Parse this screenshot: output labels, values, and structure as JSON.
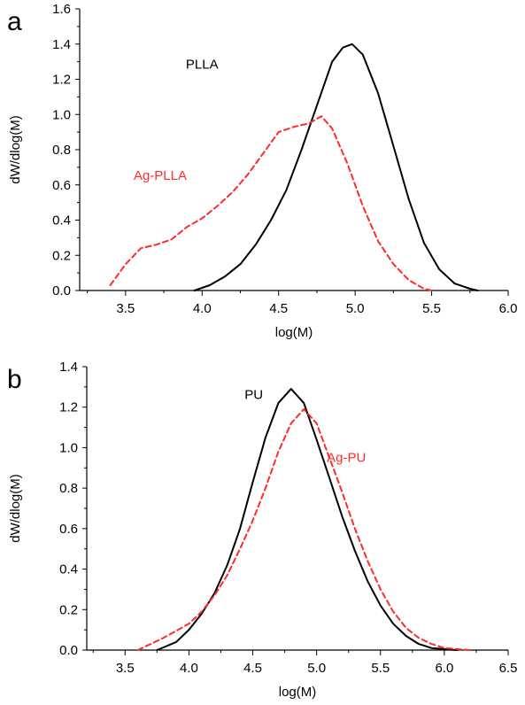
{
  "chart_data": [
    {
      "panel": "a",
      "type": "line",
      "xlabel": "log(M)",
      "ylabel": "dW/dlog(M)",
      "xlim": [
        3.2,
        6.0
      ],
      "ylim": [
        0.0,
        1.6
      ],
      "xticks": [
        "3.5",
        "4.0",
        "4.5",
        "5.0",
        "5.5",
        "6.0"
      ],
      "yticks": [
        "0.0",
        "0.2",
        "0.4",
        "0.6",
        "0.8",
        "1.0",
        "1.2",
        "1.4",
        "1.6"
      ],
      "series": [
        {
          "name": "PLLA",
          "color": "#000000",
          "dash": "solid",
          "x": [
            3.95,
            4.05,
            4.15,
            4.25,
            4.35,
            4.45,
            4.55,
            4.65,
            4.75,
            4.85,
            4.92,
            4.98,
            5.05,
            5.15,
            5.25,
            5.35,
            5.45,
            5.55,
            5.65,
            5.75,
            5.8
          ],
          "y": [
            0.0,
            0.03,
            0.08,
            0.15,
            0.26,
            0.4,
            0.57,
            0.8,
            1.05,
            1.3,
            1.38,
            1.4,
            1.34,
            1.12,
            0.82,
            0.52,
            0.27,
            0.12,
            0.04,
            0.01,
            0.0
          ]
        },
        {
          "name": "Ag-PLLA",
          "color": "#ff2a2a",
          "dash": "dashed",
          "x": [
            3.4,
            3.5,
            3.6,
            3.7,
            3.8,
            3.9,
            4.0,
            4.1,
            4.2,
            4.3,
            4.4,
            4.5,
            4.6,
            4.7,
            4.78,
            4.85,
            4.95,
            5.05,
            5.15,
            5.25,
            5.35,
            5.45,
            5.5
          ],
          "y": [
            0.03,
            0.15,
            0.24,
            0.26,
            0.29,
            0.36,
            0.41,
            0.48,
            0.56,
            0.66,
            0.78,
            0.9,
            0.93,
            0.95,
            0.99,
            0.92,
            0.72,
            0.48,
            0.28,
            0.15,
            0.06,
            0.01,
            0.0
          ]
        }
      ]
    },
    {
      "panel": "b",
      "type": "line",
      "xlabel": "log(M)",
      "ylabel": "dW/dlog(M)",
      "xlim": [
        3.2,
        6.5
      ],
      "ylim": [
        0.0,
        1.4
      ],
      "xticks": [
        "3.5",
        "4.0",
        "4.5",
        "5.0",
        "5.5",
        "6.0",
        "6.5"
      ],
      "yticks": [
        "0.0",
        "0.2",
        "0.4",
        "0.6",
        "0.8",
        "1.0",
        "1.2",
        "1.4"
      ],
      "series": [
        {
          "name": "PU",
          "color": "#000000",
          "dash": "solid",
          "x": [
            3.75,
            3.9,
            4.0,
            4.1,
            4.2,
            4.3,
            4.4,
            4.5,
            4.6,
            4.7,
            4.8,
            4.9,
            5.0,
            5.1,
            5.2,
            5.3,
            5.4,
            5.5,
            5.6,
            5.7,
            5.8,
            5.9,
            6.0,
            6.1
          ],
          "y": [
            0.0,
            0.04,
            0.1,
            0.18,
            0.28,
            0.42,
            0.6,
            0.83,
            1.05,
            1.22,
            1.29,
            1.22,
            1.04,
            0.85,
            0.66,
            0.49,
            0.34,
            0.22,
            0.13,
            0.07,
            0.03,
            0.01,
            0.005,
            0.0
          ]
        },
        {
          "name": "Ag-PU",
          "color": "#ff2a2a",
          "dash": "dashed",
          "x": [
            3.6,
            3.8,
            4.0,
            4.1,
            4.2,
            4.3,
            4.4,
            4.5,
            4.6,
            4.7,
            4.8,
            4.9,
            5.0,
            5.1,
            5.2,
            5.3,
            5.4,
            5.5,
            5.6,
            5.7,
            5.8,
            5.9,
            6.0,
            6.2
          ],
          "y": [
            0.0,
            0.06,
            0.13,
            0.19,
            0.27,
            0.37,
            0.5,
            0.64,
            0.8,
            0.98,
            1.12,
            1.19,
            1.12,
            0.95,
            0.78,
            0.6,
            0.44,
            0.3,
            0.19,
            0.11,
            0.06,
            0.03,
            0.01,
            0.0
          ]
        }
      ]
    }
  ]
}
